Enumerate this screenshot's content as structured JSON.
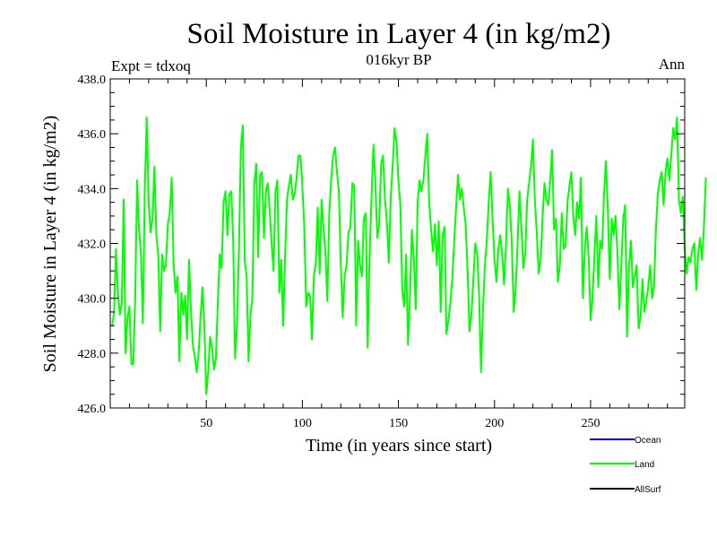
{
  "chart_data": {
    "type": "line",
    "title": "Soil Moisture in Layer 4 (in kg/m2)",
    "subtitle": "016kyr BP",
    "left_note": "Expt = tdxoq",
    "right_note": "Ann",
    "xlabel": "Time (in years since start)",
    "ylabel": "Soil Moisture in Layer 4 (in kg/m2)",
    "xlim": [
      0,
      299
    ],
    "ylim": [
      426.0,
      438.0
    ],
    "x_ticks": [
      50,
      100,
      150,
      200,
      250
    ],
    "x_tick_labels": [
      "50",
      "100",
      "150",
      "200",
      "250"
    ],
    "y_ticks": [
      426,
      428,
      430,
      432,
      434,
      436,
      438
    ],
    "y_tick_labels": [
      "426.0",
      "428.0",
      "430.0",
      "432.0",
      "434.0",
      "436.0",
      "438.0"
    ],
    "grid": false,
    "legend_position": "bottom-right",
    "colors": {
      "Ocean": "#0000ff",
      "Land": "#00ff00",
      "AllSurf": "#000000"
    },
    "series": [
      {
        "name": "Ocean",
        "values": []
      },
      {
        "name": "Land",
        "x_start": 1,
        "x_step": 1,
        "values": [
          429.0,
          429.5,
          431.8,
          430.2,
          429.4,
          429.8,
          433.6,
          428.0,
          429.3,
          429.7,
          427.6,
          427.6,
          430.0,
          434.3,
          432.5,
          431.6,
          429.1,
          434.0,
          436.6,
          433.5,
          432.4,
          432.9,
          434.8,
          432.3,
          431.6,
          428.8,
          431.6,
          431.0,
          431.2,
          432.7,
          433.1,
          434.4,
          431.2,
          430.2,
          430.8,
          427.7,
          430.2,
          429.4,
          430.1,
          428.5,
          431.4,
          429.6,
          428.3,
          427.9,
          427.3,
          428.0,
          429.3,
          430.4,
          429.0,
          426.5,
          427.3,
          428.6,
          428.2,
          427.4,
          427.8,
          429.8,
          431.6,
          431.1,
          433.5,
          433.9,
          432.3,
          433.8,
          433.9,
          432.1,
          427.8,
          429.1,
          431.8,
          435.5,
          436.3,
          431.4,
          430.8,
          427.7,
          429.4,
          430.0,
          434.2,
          434.9,
          431.5,
          434.5,
          434.6,
          432.2,
          433.9,
          434.2,
          433.2,
          432.0,
          431.0,
          433.9,
          434.3,
          430.2,
          431.4,
          429.0,
          431.5,
          433.6,
          434.1,
          434.5,
          433.6,
          433.8,
          434.4,
          435.2,
          435.2,
          434.1,
          432.6,
          429.7,
          430.2,
          430.1,
          428.5,
          430.8,
          431.3,
          433.3,
          430.9,
          433.6,
          432.6,
          431.7,
          429.9,
          433.1,
          434.3,
          435.2,
          435.5,
          434.6,
          433.9,
          431.3,
          429.3,
          430.8,
          431.2,
          432.4,
          432.6,
          434.2,
          434.1,
          429.0,
          432.1,
          431.2,
          430.8,
          432.9,
          433.1,
          428.2,
          431.6,
          433.7,
          435.6,
          434.2,
          432.2,
          432.7,
          434.9,
          435.2,
          433.6,
          432.8,
          431.3,
          433.7,
          434.8,
          436.2,
          435.7,
          434.3,
          433.4,
          430.3,
          429.7,
          431.6,
          428.3,
          430.1,
          432.5,
          431.5,
          429.6,
          433.5,
          434.3,
          433.9,
          434.3,
          435.2,
          436.0,
          433.5,
          432.5,
          431.7,
          432.7,
          431.2,
          432.8,
          429.5,
          432.3,
          432.6,
          428.7,
          429.2,
          429.8,
          430.7,
          432.0,
          433.3,
          434.5,
          433.6,
          434.0,
          433.3,
          432.7,
          431.0,
          428.8,
          429.4,
          430.7,
          432.0,
          431.6,
          430.1,
          427.3,
          429.6,
          431.2,
          432.1,
          433.5,
          434.6,
          432.9,
          431.4,
          430.6,
          431.8,
          432.3,
          431.6,
          430.5,
          432.0,
          434.0,
          433.4,
          432.0,
          429.5,
          430.3,
          432.0,
          433.9,
          432.6,
          431.1,
          431.6,
          433.6,
          434.2,
          434.8,
          435.8,
          433.6,
          432.4,
          430.9,
          431.4,
          432.9,
          434.2,
          433.6,
          433.4,
          434.3,
          435.4,
          432.5,
          432.9,
          430.6,
          431.2,
          433.1,
          431.8,
          431.9,
          433.5,
          434.1,
          434.6,
          433.0,
          432.3,
          433.5,
          432.9,
          434.4,
          430.0,
          431.8,
          432.6,
          431.5,
          429.2,
          430.0,
          431.6,
          433.0,
          430.4,
          432.1,
          431.8,
          433.8,
          435.0,
          433.2,
          430.7,
          432.9,
          432.3,
          433.0,
          431.6,
          429.6,
          431.2,
          432.9,
          433.4,
          428.6,
          431.2,
          432.1,
          430.4,
          430.8,
          431.2,
          428.9,
          429.3,
          430.7,
          429.5,
          429.9,
          430.4,
          431.2,
          430.0,
          430.4,
          432.5,
          433.8,
          434.3,
          434.6,
          433.4,
          434.6,
          435.1,
          434.3,
          435.2,
          436.2,
          435.8,
          436.6,
          433.6,
          433.1,
          433.7,
          431.8,
          430.9,
          431.5,
          431.3,
          431.8,
          432.0,
          430.3,
          431.6,
          432.2,
          431.4,
          432.6,
          434.4
        ]
      },
      {
        "name": "AllSurf",
        "values": []
      }
    ]
  }
}
